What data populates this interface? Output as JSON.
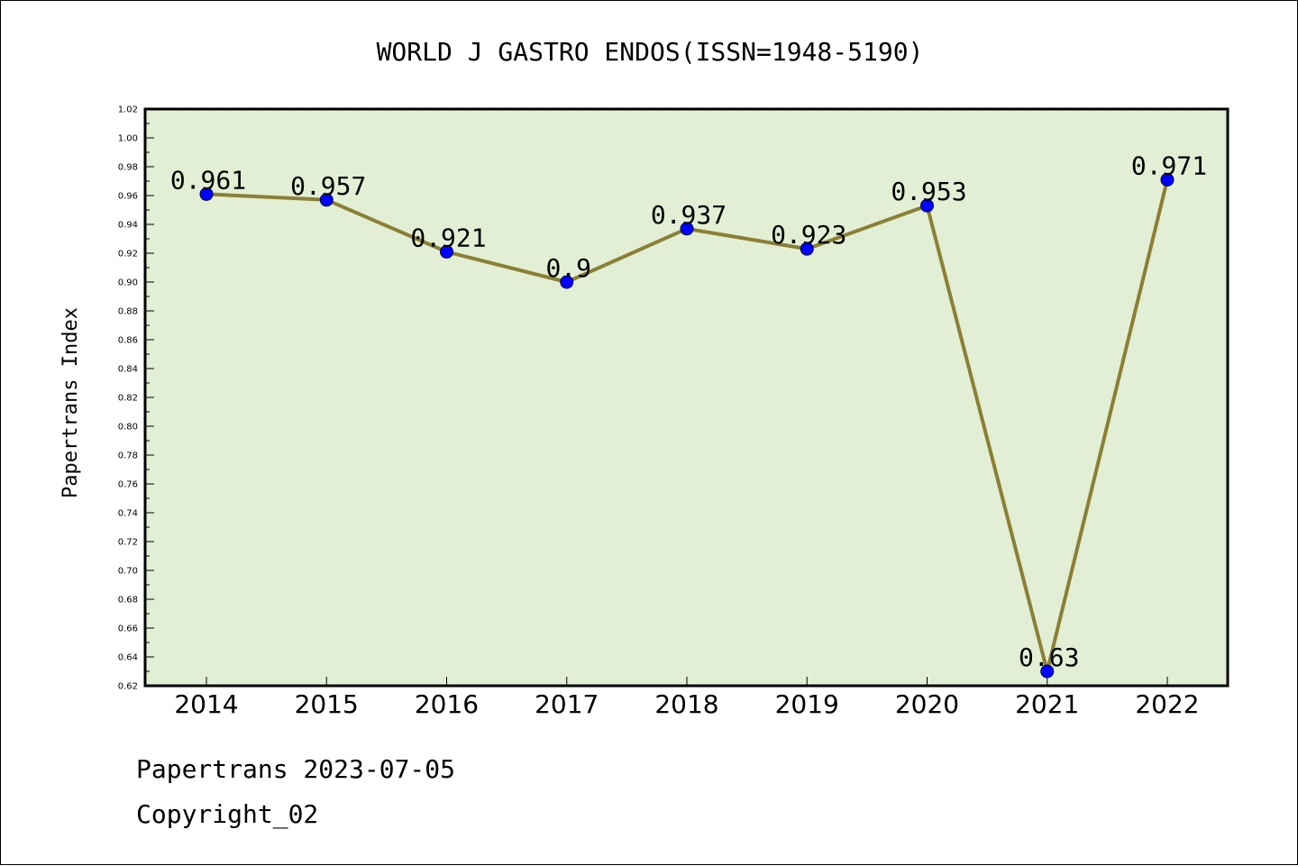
{
  "chart_data": {
    "type": "line",
    "title": "WORLD J GASTRO ENDOS(ISSN=1948-5190)",
    "xlabel": "",
    "ylabel": "Papertrans Index",
    "categories": [
      "2014",
      "2015",
      "2016",
      "2017",
      "2018",
      "2019",
      "2020",
      "2021",
      "2022"
    ],
    "series": [
      {
        "values": [
          0.961,
          0.957,
          0.921,
          0.9,
          0.937,
          0.923,
          0.953,
          0.63,
          0.971
        ],
        "labels": [
          "0.961",
          "0.957",
          "0.921",
          "0.9",
          "0.937",
          "0.923",
          "0.953",
          "0.63",
          "0.971"
        ]
      }
    ],
    "ylim": [
      0.62,
      1.02
    ],
    "yticks": [
      "0.62",
      "0.64",
      "0.66",
      "0.68",
      "0.70",
      "0.72",
      "0.74",
      "0.76",
      "0.78",
      "0.80",
      "0.82",
      "0.84",
      "0.86",
      "0.88",
      "0.90",
      "0.92",
      "0.94",
      "0.96",
      "0.98",
      "1.00",
      "1.02"
    ],
    "grid": false,
    "legend": "none",
    "colors": {
      "plot_background": "#e2efd5",
      "line": "#8b7f35",
      "marker": "#0000ff"
    }
  },
  "footer": {
    "line1": "Papertrans 2023-07-05",
    "line2": "Copyright_02"
  }
}
